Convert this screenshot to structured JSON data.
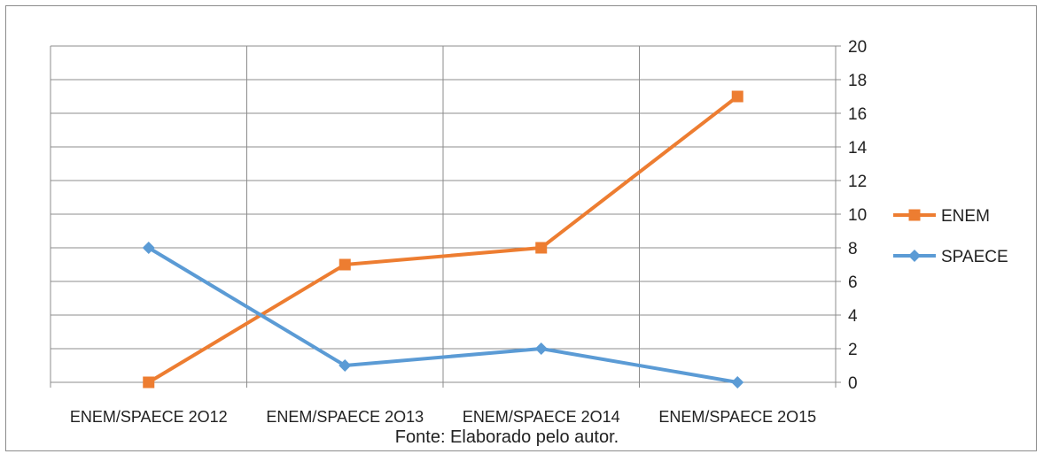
{
  "chart_data": {
    "type": "line",
    "categories": [
      "ENEM/SPAECE 2O12",
      "ENEM/SPAECE 2O13",
      "ENEM/SPAECE 2O14",
      "ENEM/SPAECE 2O15"
    ],
    "series": [
      {
        "name": "ENEM",
        "values": [
          0,
          7,
          8,
          17
        ],
        "color": "#ed7d31",
        "marker": "square"
      },
      {
        "name": "SPAECE",
        "values": [
          8,
          1,
          2,
          0
        ],
        "color": "#5b9bd5",
        "marker": "diamond"
      }
    ],
    "ylim": [
      0,
      20
    ],
    "yticks": [
      "0",
      "2",
      "4",
      "6",
      "8",
      "10",
      "12",
      "14",
      "16",
      "18",
      "20"
    ],
    "y_axis_side": "right",
    "grid": true,
    "legend_position": "right",
    "grid_color": "#8c8c8c"
  },
  "caption": "Fonte: Elaborado pelo autor."
}
